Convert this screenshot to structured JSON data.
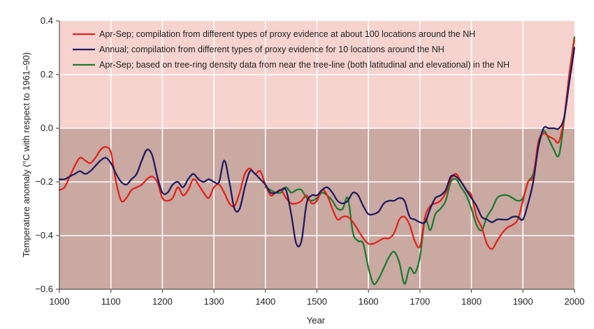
{
  "chart_data": {
    "type": "line",
    "xlabel": "Year",
    "ylabel": "Temperature anomaly (°C with respect to 1961–90)",
    "xlim": [
      1000,
      2000
    ],
    "ylim": [
      -0.6,
      0.4
    ],
    "x_ticks": [
      "1000",
      "1100",
      "1200",
      "1300",
      "1400",
      "1500",
      "1600",
      "1700",
      "1800",
      "1900",
      "2000"
    ],
    "y_ticks": [
      "0.4",
      "0.2",
      "0.0",
      "−0.2",
      "−0.4",
      "−0.6"
    ],
    "grid": true,
    "legend_position": "top-left",
    "background": {
      "positive": "#f6d3cf",
      "negative": "#c9a9a2"
    },
    "series": [
      {
        "name": "Apr-Sep; compilation from different types of proxy evidence at about 100 locations around the NH",
        "color": "#e0231c",
        "x": [
          1000,
          1010,
          1020,
          1030,
          1040,
          1050,
          1060,
          1070,
          1080,
          1090,
          1100,
          1110,
          1120,
          1130,
          1140,
          1150,
          1160,
          1170,
          1180,
          1190,
          1200,
          1210,
          1220,
          1230,
          1240,
          1250,
          1260,
          1270,
          1280,
          1290,
          1300,
          1310,
          1320,
          1330,
          1340,
          1350,
          1360,
          1370,
          1380,
          1390,
          1400,
          1410,
          1420,
          1430,
          1440,
          1450,
          1460,
          1470,
          1480,
          1490,
          1500,
          1510,
          1520,
          1530,
          1540,
          1550,
          1560,
          1570,
          1580,
          1590,
          1600,
          1610,
          1620,
          1630,
          1640,
          1650,
          1660,
          1670,
          1680,
          1690,
          1700,
          1710,
          1720,
          1730,
          1740,
          1750,
          1760,
          1770,
          1780,
          1790,
          1800,
          1810,
          1820,
          1830,
          1840,
          1850,
          1860,
          1870,
          1880,
          1890,
          1900,
          1910,
          1920,
          1930,
          1940,
          1950,
          1960,
          1970,
          1980,
          1990,
          2000
        ],
        "y": [
          -0.23,
          -0.22,
          -0.18,
          -0.14,
          -0.11,
          -0.12,
          -0.13,
          -0.11,
          -0.08,
          -0.07,
          -0.09,
          -0.2,
          -0.27,
          -0.26,
          -0.23,
          -0.22,
          -0.21,
          -0.19,
          -0.18,
          -0.2,
          -0.26,
          -0.27,
          -0.26,
          -0.22,
          -0.25,
          -0.23,
          -0.19,
          -0.21,
          -0.24,
          -0.26,
          -0.22,
          -0.21,
          -0.24,
          -0.28,
          -0.29,
          -0.24,
          -0.17,
          -0.15,
          -0.17,
          -0.16,
          -0.21,
          -0.25,
          -0.24,
          -0.23,
          -0.26,
          -0.28,
          -0.28,
          -0.27,
          -0.25,
          -0.28,
          -0.27,
          -0.23,
          -0.25,
          -0.3,
          -0.34,
          -0.33,
          -0.33,
          -0.35,
          -0.38,
          -0.41,
          -0.43,
          -0.43,
          -0.42,
          -0.41,
          -0.41,
          -0.39,
          -0.34,
          -0.33,
          -0.36,
          -0.42,
          -0.44,
          -0.33,
          -0.29,
          -0.28,
          -0.27,
          -0.24,
          -0.19,
          -0.17,
          -0.2,
          -0.23,
          -0.25,
          -0.33,
          -0.37,
          -0.43,
          -0.45,
          -0.42,
          -0.39,
          -0.37,
          -0.36,
          -0.34,
          -0.27,
          -0.2,
          -0.18,
          -0.05,
          -0.02,
          -0.03,
          -0.04,
          -0.05,
          0.04,
          0.2,
          0.33
        ]
      },
      {
        "name": "Annual; compilation from different types of proxy evidence for 10 locations around the NH",
        "color": "#1f1a5e",
        "x": [
          1000,
          1010,
          1020,
          1030,
          1040,
          1050,
          1060,
          1070,
          1080,
          1090,
          1100,
          1110,
          1120,
          1130,
          1140,
          1150,
          1160,
          1170,
          1180,
          1190,
          1200,
          1210,
          1220,
          1230,
          1240,
          1250,
          1260,
          1270,
          1280,
          1290,
          1300,
          1310,
          1320,
          1330,
          1340,
          1350,
          1360,
          1370,
          1380,
          1390,
          1400,
          1410,
          1420,
          1430,
          1440,
          1450,
          1460,
          1470,
          1480,
          1490,
          1500,
          1510,
          1520,
          1530,
          1540,
          1550,
          1560,
          1570,
          1580,
          1590,
          1600,
          1610,
          1620,
          1630,
          1640,
          1650,
          1660,
          1670,
          1680,
          1690,
          1700,
          1710,
          1720,
          1730,
          1740,
          1750,
          1760,
          1770,
          1780,
          1790,
          1800,
          1810,
          1820,
          1830,
          1840,
          1850,
          1860,
          1870,
          1880,
          1890,
          1900,
          1910,
          1920,
          1930,
          1940,
          1950,
          1960,
          1970,
          1980,
          1990,
          2000
        ],
        "y": [
          -0.19,
          -0.19,
          -0.18,
          -0.17,
          -0.16,
          -0.17,
          -0.16,
          -0.14,
          -0.12,
          -0.11,
          -0.13,
          -0.17,
          -0.2,
          -0.21,
          -0.19,
          -0.17,
          -0.12,
          -0.08,
          -0.1,
          -0.18,
          -0.24,
          -0.24,
          -0.21,
          -0.2,
          -0.22,
          -0.19,
          -0.17,
          -0.19,
          -0.2,
          -0.19,
          -0.2,
          -0.2,
          -0.12,
          -0.2,
          -0.3,
          -0.3,
          -0.22,
          -0.16,
          -0.17,
          -0.19,
          -0.21,
          -0.24,
          -0.24,
          -0.23,
          -0.23,
          -0.32,
          -0.43,
          -0.42,
          -0.28,
          -0.25,
          -0.25,
          -0.23,
          -0.22,
          -0.24,
          -0.27,
          -0.28,
          -0.27,
          -0.24,
          -0.25,
          -0.29,
          -0.32,
          -0.32,
          -0.31,
          -0.28,
          -0.27,
          -0.27,
          -0.26,
          -0.27,
          -0.33,
          -0.34,
          -0.35,
          -0.35,
          -0.3,
          -0.26,
          -0.25,
          -0.23,
          -0.18,
          -0.18,
          -0.2,
          -0.23,
          -0.26,
          -0.29,
          -0.33,
          -0.34,
          -0.35,
          -0.34,
          -0.34,
          -0.34,
          -0.33,
          -0.33,
          -0.34,
          -0.28,
          -0.2,
          -0.07,
          0.0,
          0.0,
          0.0,
          0.0,
          0.04,
          0.17,
          0.3
        ]
      },
      {
        "name": "Apr-Sep; based on tree-ring density data from near the tree-line (both latitudinal and elevational) in the NH",
        "color": "#1d7a2f",
        "x": [
          1400,
          1410,
          1420,
          1430,
          1440,
          1450,
          1460,
          1470,
          1480,
          1490,
          1500,
          1510,
          1520,
          1530,
          1540,
          1550,
          1560,
          1570,
          1580,
          1590,
          1600,
          1610,
          1620,
          1630,
          1640,
          1650,
          1660,
          1670,
          1680,
          1690,
          1700,
          1710,
          1720,
          1730,
          1740,
          1750,
          1760,
          1770,
          1780,
          1790,
          1800,
          1810,
          1820,
          1830,
          1840,
          1850,
          1860,
          1870,
          1880,
          1890,
          1900,
          1910,
          1920,
          1930,
          1940,
          1950,
          1960,
          1970,
          1980,
          1990,
          2000
        ],
        "y": [
          -0.22,
          -0.23,
          -0.24,
          -0.24,
          -0.22,
          -0.24,
          -0.23,
          -0.23,
          -0.26,
          -0.27,
          -0.26,
          -0.24,
          -0.25,
          -0.27,
          -0.3,
          -0.3,
          -0.26,
          -0.39,
          -0.42,
          -0.43,
          -0.52,
          -0.58,
          -0.56,
          -0.52,
          -0.48,
          -0.46,
          -0.5,
          -0.58,
          -0.52,
          -0.54,
          -0.48,
          -0.34,
          -0.38,
          -0.32,
          -0.3,
          -0.27,
          -0.2,
          -0.19,
          -0.22,
          -0.25,
          -0.3,
          -0.36,
          -0.38,
          -0.33,
          -0.3,
          -0.26,
          -0.25,
          -0.25,
          -0.26,
          -0.27,
          -0.26,
          -0.2,
          -0.17,
          -0.07,
          -0.01,
          -0.04,
          -0.08,
          -0.1,
          0.03,
          0.2,
          0.34
        ]
      }
    ]
  }
}
